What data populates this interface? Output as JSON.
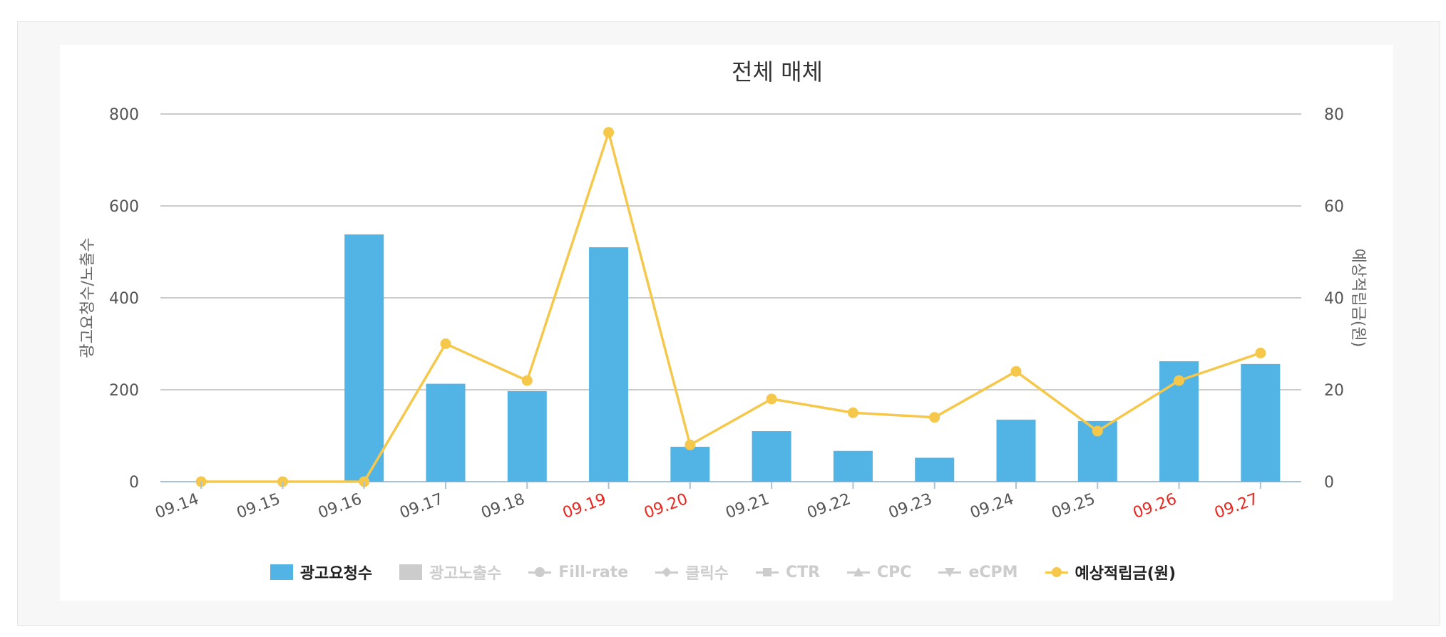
{
  "chart_data": {
    "type": "bar",
    "title": "전체 매체",
    "categories": [
      "09.14",
      "09.15",
      "09.16",
      "09.17",
      "09.18",
      "09.19",
      "09.20",
      "09.21",
      "09.22",
      "09.23",
      "09.24",
      "09.25",
      "09.26",
      "09.27"
    ],
    "highlighted_categories": [
      "09.19",
      "09.20",
      "09.26",
      "09.27"
    ],
    "ylabel_left": "광고요청수/노출수",
    "ylabel_right": "예상적립금(원)",
    "ylim_left": [
      0,
      800
    ],
    "ylim_right": [
      0,
      80
    ],
    "yticks_left": [
      "0",
      "200",
      "400",
      "600",
      "800"
    ],
    "yticks_right": [
      "0",
      "20",
      "40",
      "60",
      "80"
    ],
    "grid": true,
    "legend_position": "bottom",
    "series": [
      {
        "name": "광고요청수",
        "type": "bar",
        "axis": "left",
        "color": "#52b3e5",
        "visible": true,
        "values": [
          0,
          0,
          538,
          213,
          197,
          510,
          76,
          110,
          67,
          52,
          135,
          132,
          262,
          256
        ]
      },
      {
        "name": "예상적립금(원)",
        "type": "line",
        "axis": "right",
        "color": "#f5c84c",
        "visible": true,
        "values": [
          0,
          0,
          0,
          30,
          22,
          76,
          8,
          18,
          15,
          14,
          24,
          11,
          22,
          28
        ]
      }
    ]
  },
  "legend": {
    "items": [
      {
        "label": "광고요청수",
        "symbol": "rect",
        "marker": "none",
        "color": "#52b3e5",
        "active": true
      },
      {
        "label": "광고노출수",
        "symbol": "rect",
        "marker": "none",
        "color": "#cccccc",
        "active": false
      },
      {
        "label": "Fill-rate",
        "symbol": "line",
        "marker": "circle",
        "color": "#cccccc",
        "active": false
      },
      {
        "label": "클릭수",
        "symbol": "line",
        "marker": "diamond",
        "color": "#cccccc",
        "active": false
      },
      {
        "label": "CTR",
        "symbol": "line",
        "marker": "square",
        "color": "#cccccc",
        "active": false
      },
      {
        "label": "CPC",
        "symbol": "line",
        "marker": "triangle",
        "color": "#cccccc",
        "active": false
      },
      {
        "label": "eCPM",
        "symbol": "line",
        "marker": "triangle-down",
        "color": "#cccccc",
        "active": false
      },
      {
        "label": "예상적립금(원)",
        "symbol": "line",
        "marker": "circle",
        "color": "#f5c84c",
        "active": true
      }
    ]
  },
  "colors": {
    "text": "#333333",
    "axis_text": "#555555",
    "highlight_text": "#e8261e",
    "grid": "#bbbbbb",
    "inactive_legend_text": "#cccccc"
  }
}
